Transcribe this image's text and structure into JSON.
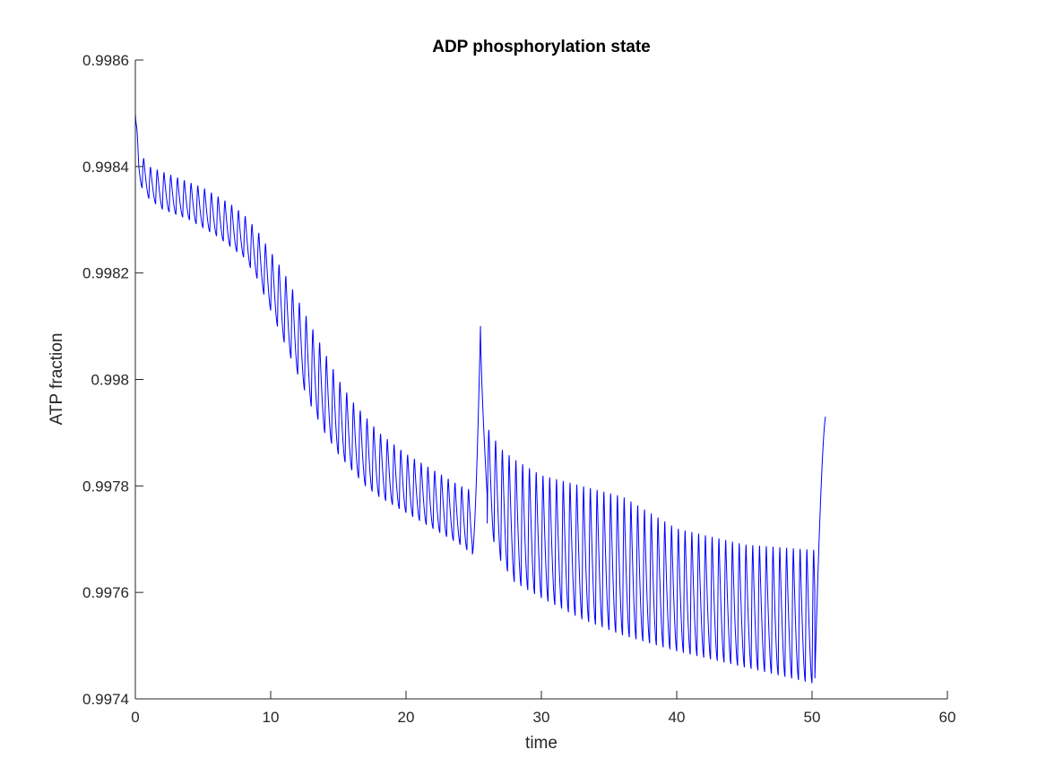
{
  "chart_data": {
    "type": "line",
    "title": "ADP phosphorylation state",
    "xlabel": "time",
    "ylabel": "ATP fraction",
    "xlim": [
      0,
      60
    ],
    "ylim": [
      0.9974,
      0.9986
    ],
    "xticks": [
      0,
      10,
      20,
      30,
      40,
      50,
      60
    ],
    "xtick_labels": [
      "0",
      "10",
      "20",
      "30",
      "40",
      "50",
      "60"
    ],
    "yticks": [
      0.9974,
      0.9976,
      0.9978,
      0.998,
      0.9982,
      0.9984,
      0.9986
    ],
    "ytick_labels": [
      "0.9974",
      "0.9976",
      "0.9978",
      "0.998",
      "0.9982",
      "0.9984",
      "0.9986"
    ],
    "grid": false,
    "series": [
      {
        "name": "ATP fraction",
        "color": "#0000ff",
        "period": 0.5,
        "x_end": 51.0,
        "upper_envelope": {
          "t": [
            0,
            1,
            3,
            5,
            7,
            8,
            9,
            10,
            11,
            12,
            13,
            14,
            15,
            16,
            17,
            18,
            20,
            22,
            24,
            25,
            26,
            27,
            28,
            30,
            33,
            36,
            40,
            45,
            50
          ],
          "v": [
            0.99844,
            0.9984,
            0.99838,
            0.99836,
            0.99833,
            0.99831,
            0.99828,
            0.99824,
            0.9982,
            0.99815,
            0.9981,
            0.99805,
            0.998,
            0.99796,
            0.99793,
            0.9979,
            0.99786,
            0.99783,
            0.9978,
            0.99779,
            0.99791,
            0.99787,
            0.99785,
            0.99782,
            0.9978,
            0.99778,
            0.99772,
            0.99769,
            0.99768
          ]
        },
        "lower_envelope": {
          "t": [
            0,
            1,
            2,
            4,
            6,
            8,
            9,
            10,
            11,
            12,
            13,
            14,
            15,
            16,
            17,
            18,
            20,
            22,
            24,
            25,
            26,
            27,
            28,
            30,
            33,
            36,
            40,
            45,
            50
          ],
          "v": [
            0.99838,
            0.99834,
            0.99832,
            0.9983,
            0.99827,
            0.99823,
            0.99819,
            0.99813,
            0.99807,
            0.99801,
            0.99795,
            0.9979,
            0.99786,
            0.99783,
            0.9978,
            0.99778,
            0.99775,
            0.99772,
            0.99769,
            0.99767,
            0.99773,
            0.99766,
            0.99762,
            0.99759,
            0.99755,
            0.99752,
            0.99749,
            0.99746,
            0.99743
          ]
        },
        "events": [
          {
            "t_start": 24.9,
            "t_peak": 25.5,
            "v_peak": 0.9981,
            "t_end": 26.0,
            "v_end": 0.99778
          },
          {
            "t_start": 50.2,
            "t_peak": 51.0,
            "v_peak": 0.99793
          }
        ],
        "start_value": 0.9985
      }
    ]
  }
}
